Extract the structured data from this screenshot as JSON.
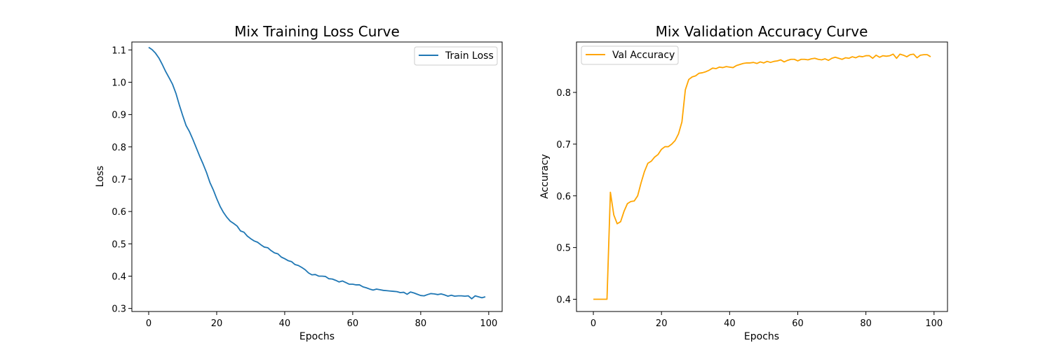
{
  "chart_data": [
    {
      "type": "line",
      "title": "Mix Training Loss Curve",
      "xlabel": "Epochs",
      "ylabel": "Loss",
      "xlim": [
        -4.95,
        103.95
      ],
      "ylim": [
        0.2906,
        1.1245
      ],
      "xticks": [
        0,
        20,
        40,
        60,
        80,
        100
      ],
      "yticks": [
        0.3,
        0.4,
        0.5,
        0.6,
        0.7,
        0.8,
        0.9,
        1.0,
        1.1
      ],
      "ytick_labels": [
        "0.3",
        "0.4",
        "0.5",
        "0.6",
        "0.7",
        "0.8",
        "0.9",
        "1.0",
        "1.1"
      ],
      "legend_position": "upper right",
      "series": [
        {
          "name": "Train Loss",
          "color": "#1f77b4",
          "x": [
            0,
            1,
            2,
            3,
            4,
            5,
            6,
            7,
            8,
            9,
            10,
            11,
            12,
            13,
            14,
            15,
            16,
            17,
            18,
            19,
            20,
            21,
            22,
            23,
            24,
            25,
            26,
            27,
            28,
            29,
            30,
            31,
            32,
            33,
            34,
            35,
            36,
            37,
            38,
            39,
            40,
            41,
            42,
            43,
            44,
            45,
            46,
            47,
            48,
            49,
            50,
            51,
            52,
            53,
            54,
            55,
            56,
            57,
            58,
            59,
            60,
            61,
            62,
            63,
            64,
            65,
            66,
            67,
            68,
            69,
            70,
            71,
            72,
            73,
            74,
            75,
            76,
            77,
            78,
            79,
            80,
            81,
            82,
            83,
            84,
            85,
            86,
            87,
            88,
            89,
            90,
            91,
            92,
            93,
            94,
            95,
            96,
            97,
            98,
            99
          ],
          "values": [
            1.108,
            1.101,
            1.09,
            1.075,
            1.055,
            1.033,
            1.014,
            0.994,
            0.966,
            0.93,
            0.897,
            0.866,
            0.847,
            0.823,
            0.797,
            0.771,
            0.747,
            0.721,
            0.69,
            0.667,
            0.64,
            0.616,
            0.597,
            0.582,
            0.57,
            0.563,
            0.555,
            0.54,
            0.536,
            0.524,
            0.516,
            0.509,
            0.505,
            0.497,
            0.49,
            0.488,
            0.479,
            0.472,
            0.469,
            0.459,
            0.454,
            0.448,
            0.445,
            0.436,
            0.433,
            0.427,
            0.42,
            0.41,
            0.404,
            0.405,
            0.4,
            0.4,
            0.399,
            0.392,
            0.391,
            0.387,
            0.382,
            0.385,
            0.38,
            0.375,
            0.375,
            0.373,
            0.373,
            0.367,
            0.364,
            0.36,
            0.357,
            0.36,
            0.358,
            0.356,
            0.355,
            0.354,
            0.353,
            0.352,
            0.349,
            0.35,
            0.344,
            0.351,
            0.348,
            0.344,
            0.34,
            0.339,
            0.343,
            0.346,
            0.345,
            0.343,
            0.345,
            0.342,
            0.338,
            0.341,
            0.338,
            0.339,
            0.339,
            0.338,
            0.339,
            0.33,
            0.339,
            0.336,
            0.333,
            0.336
          ]
        }
      ]
    },
    {
      "type": "line",
      "title": "Mix Validation Accuracy Curve",
      "xlabel": "Epochs",
      "ylabel": "Accuracy",
      "xlim": [
        -4.95,
        103.95
      ],
      "ylim": [
        0.3763,
        0.8975
      ],
      "xticks": [
        0,
        20,
        40,
        60,
        80,
        100
      ],
      "yticks": [
        0.4,
        0.5,
        0.6,
        0.7,
        0.8
      ],
      "ytick_labels": [
        "0.4",
        "0.5",
        "0.6",
        "0.7",
        "0.8"
      ],
      "legend_position": "upper left",
      "series": [
        {
          "name": "Val Accuracy",
          "color": "#ffa500",
          "x": [
            0,
            1,
            2,
            3,
            4,
            5,
            6,
            7,
            8,
            9,
            10,
            11,
            12,
            13,
            14,
            15,
            16,
            17,
            18,
            19,
            20,
            21,
            22,
            23,
            24,
            25,
            26,
            27,
            28,
            29,
            30,
            31,
            32,
            33,
            34,
            35,
            36,
            37,
            38,
            39,
            40,
            41,
            42,
            43,
            44,
            45,
            46,
            47,
            48,
            49,
            50,
            51,
            52,
            53,
            54,
            55,
            56,
            57,
            58,
            59,
            60,
            61,
            62,
            63,
            64,
            65,
            66,
            67,
            68,
            69,
            70,
            71,
            72,
            73,
            74,
            75,
            76,
            77,
            78,
            79,
            80,
            81,
            82,
            83,
            84,
            85,
            86,
            87,
            88,
            89,
            90,
            91,
            92,
            93,
            94,
            95,
            96,
            97,
            98,
            99
          ],
          "values": [
            0.4,
            0.4,
            0.4,
            0.4,
            0.4,
            0.607,
            0.563,
            0.546,
            0.55,
            0.57,
            0.585,
            0.589,
            0.59,
            0.6,
            0.625,
            0.647,
            0.663,
            0.667,
            0.675,
            0.68,
            0.69,
            0.695,
            0.695,
            0.7,
            0.707,
            0.72,
            0.743,
            0.805,
            0.825,
            0.83,
            0.832,
            0.837,
            0.838,
            0.84,
            0.843,
            0.847,
            0.846,
            0.849,
            0.848,
            0.85,
            0.849,
            0.848,
            0.852,
            0.854,
            0.856,
            0.857,
            0.857,
            0.858,
            0.856,
            0.859,
            0.857,
            0.86,
            0.858,
            0.86,
            0.861,
            0.863,
            0.859,
            0.862,
            0.864,
            0.864,
            0.861,
            0.864,
            0.864,
            0.863,
            0.865,
            0.866,
            0.864,
            0.863,
            0.865,
            0.862,
            0.866,
            0.868,
            0.866,
            0.864,
            0.867,
            0.866,
            0.869,
            0.867,
            0.87,
            0.869,
            0.871,
            0.871,
            0.866,
            0.872,
            0.868,
            0.871,
            0.87,
            0.871,
            0.874,
            0.866,
            0.874,
            0.872,
            0.869,
            0.873,
            0.874,
            0.867,
            0.872,
            0.873,
            0.873,
            0.869
          ]
        }
      ]
    }
  ]
}
